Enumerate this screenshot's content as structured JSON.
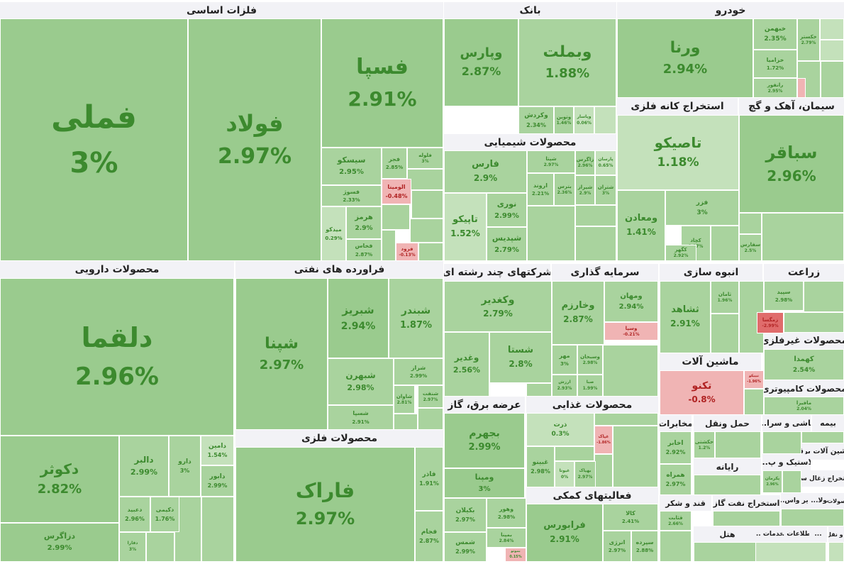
{
  "chart_data": {
    "type": "treemap",
    "title": "",
    "colors": {
      "pos_strong": "#9acb8e",
      "pos_mid": "#a9d39e",
      "pos_light": "#c4e1bb",
      "neg": "#f0b4b4",
      "neg_strong": "#e06c6c",
      "text_pos": "#3c8a2e",
      "text_neg": "#b02222"
    },
    "sectors": [
      {
        "name": "فلزات اساسی",
        "stocks": [
          {
            "name": "فملی",
            "change": 3
          },
          {
            "name": "فولاد",
            "change": 2.97
          },
          {
            "name": "فسپا",
            "change": 2.91
          },
          {
            "name": "سیسکو",
            "change": 2.95
          },
          {
            "name": "فجر",
            "change": 2.85
          },
          {
            "name": "فسوژ",
            "change": 2.33
          },
          {
            "name": "الومینا",
            "change": -0.48
          },
          {
            "name": "میدکو",
            "change": 0.29
          },
          {
            "name": "هرمز",
            "change": 2.9
          },
          {
            "name": "فخاس",
            "change": 2.87
          },
          {
            "name": "فلوله",
            "change": 3
          },
          {
            "name": "فرود",
            "change": -0.13
          }
        ]
      },
      {
        "name": "بانک",
        "stocks": [
          {
            "name": "وبملت",
            "change": 1.88
          },
          {
            "name": "وپارس",
            "change": 2.87
          },
          {
            "name": "وکردش",
            "change": 2.34
          },
          {
            "name": "وتوین",
            "change": 1.46
          },
          {
            "name": "وپاسار",
            "change": 0.06
          }
        ]
      },
      {
        "name": "خودرو",
        "stocks": [
          {
            "name": "ورنا",
            "change": 2.94
          },
          {
            "name": "خبهمن",
            "change": 2.35
          },
          {
            "name": "خکستر",
            "change": 2.79
          },
          {
            "name": "خزامیا",
            "change": 1.72
          },
          {
            "name": "رانفور",
            "change": 2.95
          }
        ]
      },
      {
        "name": "محصولات شیمیایی",
        "stocks": [
          {
            "name": "فارس",
            "change": 2.9
          },
          {
            "name": "شپتا",
            "change": 2.97
          },
          {
            "name": "زاگرس",
            "change": 2.96
          },
          {
            "name": "پارسان",
            "change": 0.65
          },
          {
            "name": "اروند",
            "change": 2.21
          },
          {
            "name": "بترس",
            "change": 2.36
          },
          {
            "name": "شپدیس",
            "change": 2.79
          },
          {
            "name": "نوری",
            "change": 2.99
          },
          {
            "name": "تاپیکو",
            "change": 1.52
          },
          {
            "name": "شیراز",
            "change": 2.9
          },
          {
            "name": "شتران",
            "change": 3
          }
        ]
      },
      {
        "name": "استخراج کانه فلزی",
        "stocks": [
          {
            "name": "تاصیکو",
            "change": 1.18
          },
          {
            "name": "فزر",
            "change": 3
          },
          {
            "name": "ومعادن",
            "change": 1.41
          },
          {
            "name": "کچاد",
            "change": 1.07
          },
          {
            "name": "کگهر",
            "change": 2.92
          }
        ]
      },
      {
        "name": "سیمان، آهک و گچ",
        "stocks": [
          {
            "name": "سباقر",
            "change": 2.96
          },
          {
            "name": "سفارس",
            "change": 2.5
          }
        ]
      },
      {
        "name": "محصولات دارویی",
        "stocks": [
          {
            "name": "دلقما",
            "change": 2.96
          },
          {
            "name": "دکوثر",
            "change": 2.82
          },
          {
            "name": "دالبر",
            "change": 2.99
          },
          {
            "name": "دامین",
            "change": 1.54
          },
          {
            "name": "دارو",
            "change": 3
          },
          {
            "name": "دابور",
            "change": 2.99
          },
          {
            "name": "دعبید",
            "change": 2.96
          },
          {
            "name": "دکیمی",
            "change": 1.76
          },
          {
            "name": "دزاگرس",
            "change": 2.99
          },
          {
            "name": "دفارا",
            "change": 3
          }
        ]
      },
      {
        "name": "فراورده های نفتی",
        "stocks": [
          {
            "name": "شپنا",
            "change": 2.97
          },
          {
            "name": "شبریز",
            "change": 2.94
          },
          {
            "name": "شبندر",
            "change": 1.87
          },
          {
            "name": "شبهرن",
            "change": 2.98
          },
          {
            "name": "شراز",
            "change": 2.99
          },
          {
            "name": "شسپا",
            "change": 2.91
          },
          {
            "name": "شنفت",
            "change": 2.97
          },
          {
            "name": "شاوان",
            "change": 2.81
          }
        ]
      },
      {
        "name": "محصولات فلزی",
        "stocks": [
          {
            "name": "فاراک",
            "change": 2.97
          },
          {
            "name": "فاذر",
            "change": 1.91
          },
          {
            "name": "فجام",
            "change": 2.87
          }
        ]
      },
      {
        "name": "شرکتهای چند رشته ای",
        "stocks": [
          {
            "name": "وکغدیر",
            "change": 2.79
          },
          {
            "name": "شستا",
            "change": 2.8
          },
          {
            "name": "وغدیر",
            "change": 2.56
          }
        ]
      },
      {
        "name": "سرمایه گذاری",
        "stocks": [
          {
            "name": "وخارزم",
            "change": 2.87
          },
          {
            "name": "ومهان",
            "change": 2.94
          },
          {
            "name": "وسپا",
            "change": -0.21
          },
          {
            "name": "مهر",
            "change": 3
          },
          {
            "name": "وسبحان",
            "change": 2.98
          },
          {
            "name": "ارزش",
            "change": 2.93
          },
          {
            "name": "صبا",
            "change": 1.99
          }
        ]
      },
      {
        "name": "انبوه سازی",
        "stocks": [
          {
            "name": "ثشاهد",
            "change": 2.91
          },
          {
            "name": "ثامان",
            "change": 1.96
          }
        ]
      },
      {
        "name": "زراعت",
        "stocks": [
          {
            "name": "سپید",
            "change": 2.98
          },
          {
            "name": "زمگسا",
            "change": -2.99
          }
        ]
      },
      {
        "name": "محصولات غیرفلزی",
        "stocks": [
          {
            "name": "کهمدا",
            "change": 2.54
          }
        ]
      },
      {
        "name": "ماشین آلات",
        "stocks": [
          {
            "name": "تکنو",
            "change": -0.8
          },
          {
            "name": "تیپیکو",
            "change": -1.96
          }
        ]
      },
      {
        "name": "محصولات کامپیوتری",
        "stocks": [
          {
            "name": "مافیرا",
            "change": 2.04
          }
        ]
      },
      {
        "name": "عرضه برق، گاز",
        "stocks": [
          {
            "name": "بجهرم",
            "change": 2.99
          },
          {
            "name": "ومپنا",
            "change": 3
          },
          {
            "name": "بکیلان",
            "change": 2.97
          },
          {
            "name": "وهور",
            "change": 2.98
          },
          {
            "name": "بمپنا",
            "change": 2.84
          },
          {
            "name": "شمس",
            "change": 2.99
          },
          {
            "name": "بموتو",
            "change": 0.15
          }
        ]
      },
      {
        "name": "محصولات غذایی",
        "stocks": [
          {
            "name": "ذرت",
            "change": 0.3
          },
          {
            "name": "غبینو",
            "change": 2.98
          },
          {
            "name": "غیوتا",
            "change": 0
          },
          {
            "name": "بهپاک",
            "change": 2.97
          },
          {
            "name": "غپاک",
            "change": -1.86
          }
        ]
      },
      {
        "name": "فعالیتهای کمکی",
        "stocks": [
          {
            "name": "فرابورس",
            "change": 2.91
          },
          {
            "name": "کالا",
            "change": 2.41
          },
          {
            "name": "انرژی",
            "change": 2.97
          },
          {
            "name": "سپرده",
            "change": 2.88
          }
        ]
      },
      {
        "name": "مخابرات",
        "stocks": [
          {
            "name": "اخابر",
            "change": 2.92
          },
          {
            "name": "همراه",
            "change": 2.97
          }
        ]
      },
      {
        "name": "حمل ونقل",
        "stocks": [
          {
            "name": "حکشتی",
            "change": 1.2
          }
        ]
      },
      {
        "name": "کاشی و سرا...",
        "stocks": []
      },
      {
        "name": "بیمه",
        "stocks": []
      },
      {
        "name": "ماشین آلات برقی",
        "stocks": []
      },
      {
        "name": "رایانه",
        "stocks": []
      },
      {
        "name": "لاستیک و پ...",
        "stocks": [
          {
            "name": "پکرمان",
            "change": 2.96
          }
        ]
      },
      {
        "name": "استخراج زغال سنگ",
        "stocks": []
      },
      {
        "name": "استخراج نفت گاز",
        "stocks": []
      },
      {
        "name": "قند و شکر",
        "stocks": [
          {
            "name": "قثابت",
            "change": 2.66
          }
        ]
      },
      {
        "name": "سایر واس...",
        "stocks": []
      },
      {
        "name": "منسوجات",
        "stocks": []
      },
      {
        "name": "محصولا...",
        "stocks": []
      },
      {
        "name": "محصولات ...",
        "stocks": []
      },
      {
        "name": "هتل",
        "stocks": []
      },
      {
        "name": "اطلاعات ...",
        "stocks": []
      },
      {
        "name": "خدمات ...",
        "stocks": []
      },
      {
        "name": "...",
        "stocks": []
      },
      {
        "name": "حمل و نقل آبی",
        "stocks": []
      }
    ]
  }
}
